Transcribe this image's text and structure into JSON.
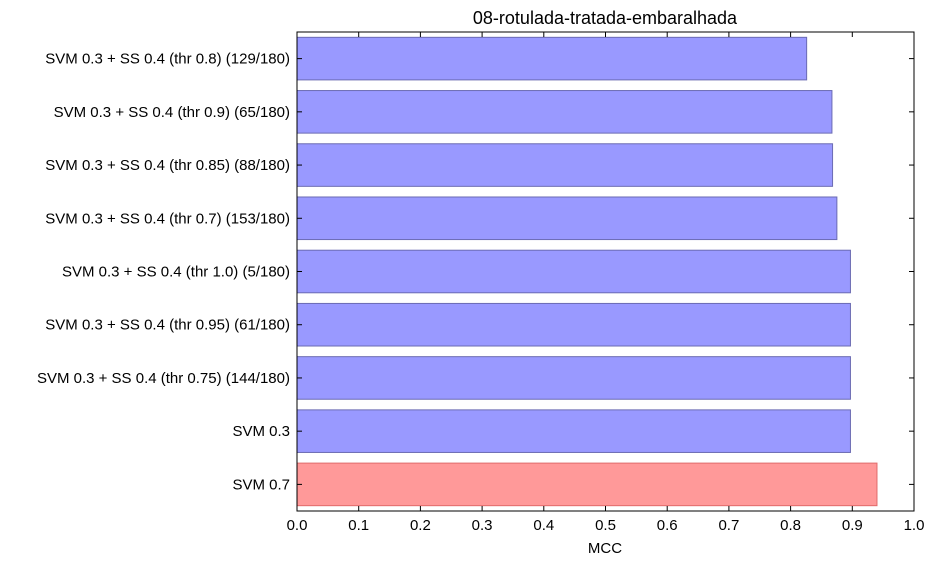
{
  "chart_data": {
    "type": "bar",
    "orientation": "horizontal",
    "title": "08-rotulada-tratada-embaralhada",
    "xlabel": "MCC",
    "ylabel": "",
    "xlim": [
      0.0,
      1.0
    ],
    "xticks": [
      "0.0",
      "0.1",
      "0.2",
      "0.3",
      "0.4",
      "0.5",
      "0.6",
      "0.7",
      "0.8",
      "0.9",
      "1.0"
    ],
    "grid": false,
    "categories": [
      "SVM 0.3 + SS 0.4 (thr 0.8) (129/180)",
      "SVM 0.3 + SS 0.4 (thr 0.9) (65/180)",
      "SVM 0.3 + SS 0.4 (thr 0.85) (88/180)",
      "SVM 0.3 + SS 0.4 (thr 0.7) (153/180)",
      "SVM 0.3 + SS 0.4 (thr 1.0) (5/180)",
      "SVM 0.3 + SS 0.4 (thr 0.95) (61/180)",
      "SVM 0.3 + SS 0.4 (thr 0.75) (144/180)",
      "SVM 0.3",
      "SVM 0.7"
    ],
    "values": [
      0.826,
      0.867,
      0.868,
      0.875,
      0.897,
      0.897,
      0.897,
      0.897,
      0.94
    ],
    "colors": [
      "#9999ff",
      "#9999ff",
      "#9999ff",
      "#9999ff",
      "#9999ff",
      "#9999ff",
      "#9999ff",
      "#9999ff",
      "#ff9999"
    ],
    "edge_colors": [
      "#6b6bb3",
      "#6b6bb3",
      "#6b6bb3",
      "#6b6bb3",
      "#6b6bb3",
      "#6b6bb3",
      "#6b6bb3",
      "#6b6bb3",
      "#e06b6b"
    ]
  }
}
